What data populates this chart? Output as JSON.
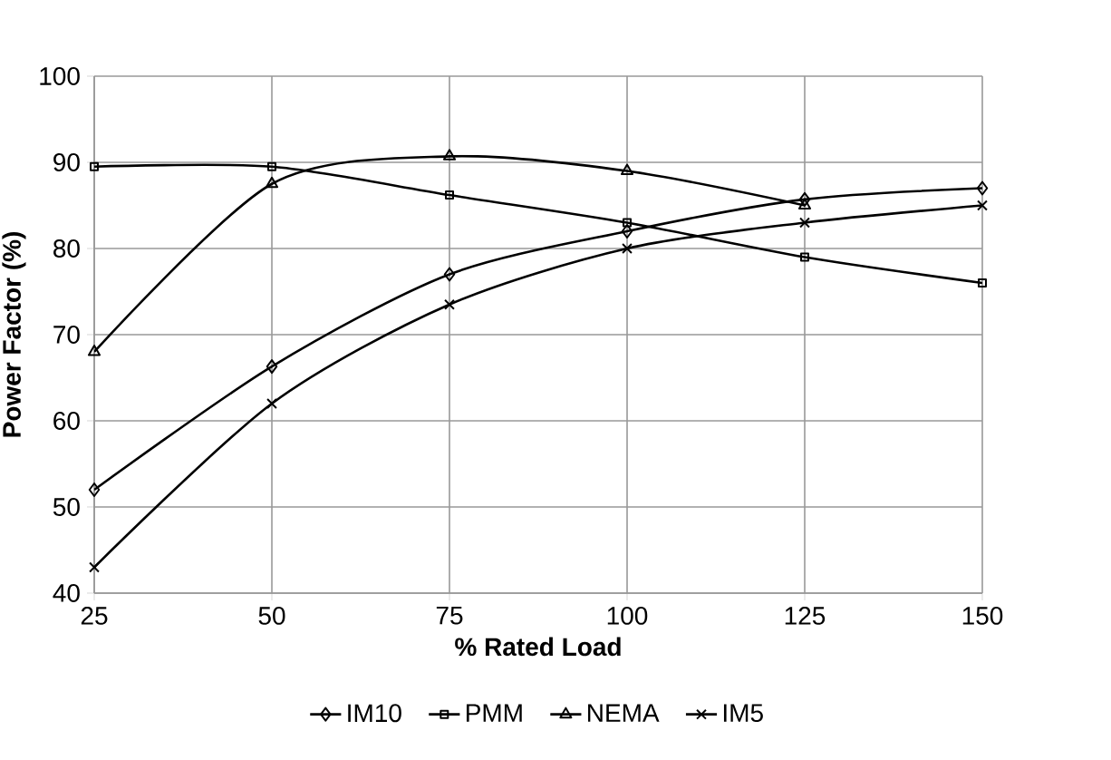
{
  "chart_data": {
    "type": "line",
    "xlabel": "% Rated Load",
    "ylabel": "Power Factor (%)",
    "x": [
      25,
      50,
      75,
      100,
      125,
      150
    ],
    "xlim": [
      25,
      150
    ],
    "xticks": [
      25,
      50,
      75,
      100,
      125,
      150
    ],
    "ylim": [
      40,
      100
    ],
    "yticks": [
      40,
      50,
      60,
      70,
      80,
      90,
      100
    ],
    "grid": true,
    "legend": "bottom",
    "line_style": "solid",
    "series": [
      {
        "name": "IM10",
        "color": "#000000",
        "marker": "diamond",
        "values": [
          52,
          66.3,
          77,
          82,
          85.7,
          87
        ]
      },
      {
        "name": "PMM",
        "color": "#000000",
        "marker": "square",
        "values": [
          89.5,
          89.5,
          86.2,
          83,
          79,
          76
        ]
      },
      {
        "name": "NEMA",
        "color": "#000000",
        "marker": "triangle",
        "values": [
          68,
          87.5,
          90.7,
          89,
          85,
          null
        ]
      },
      {
        "name": "IM5",
        "color": "#000000",
        "marker": "cross",
        "values": [
          43,
          62,
          73.5,
          80,
          83,
          85
        ]
      }
    ]
  }
}
